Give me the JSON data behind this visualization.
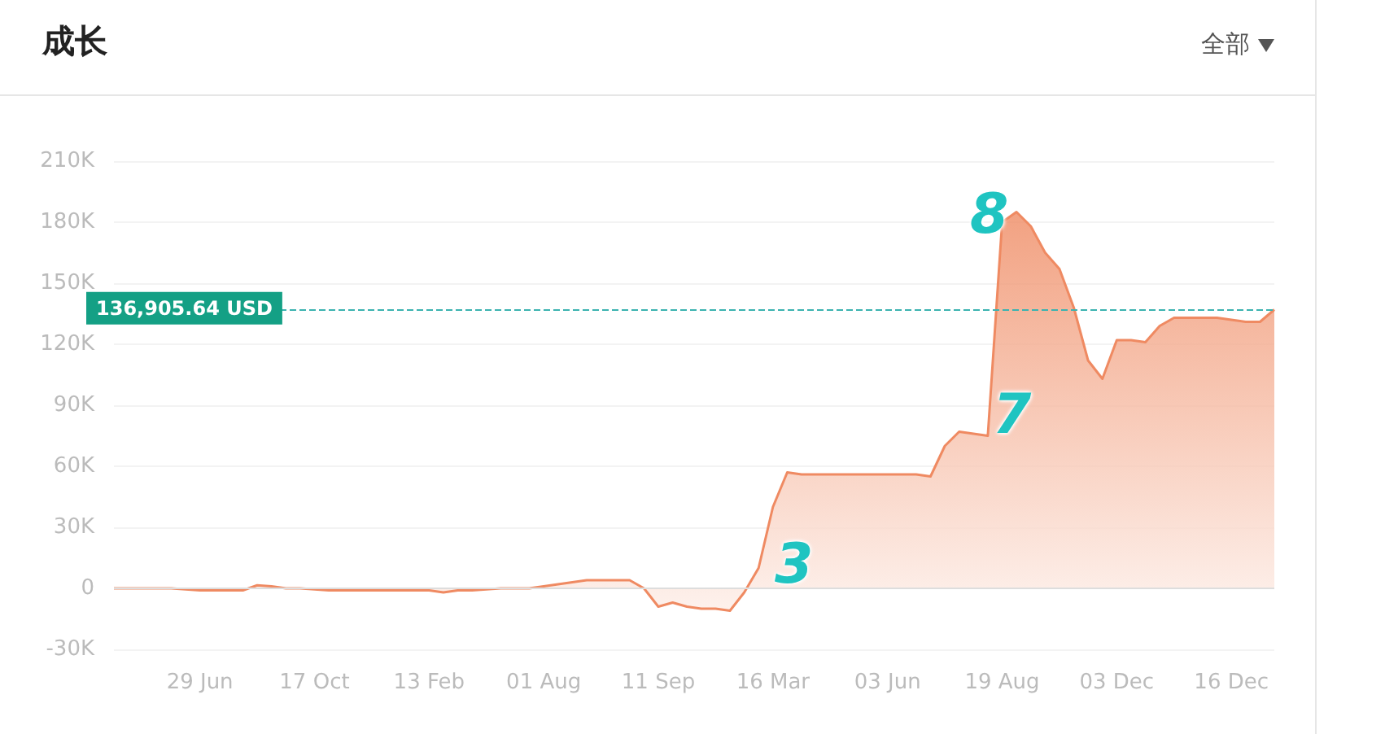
{
  "chart_data": {
    "type": "area",
    "title": "成长",
    "categories": [
      null,
      null,
      null,
      null,
      null,
      null,
      "29 Jun",
      null,
      null,
      null,
      null,
      null,
      null,
      null,
      "17 Oct",
      null,
      null,
      null,
      null,
      null,
      null,
      null,
      "13 Feb",
      null,
      null,
      null,
      null,
      null,
      null,
      null,
      "01 Aug",
      null,
      null,
      null,
      null,
      null,
      null,
      null,
      "11 Sep",
      null,
      null,
      null,
      null,
      null,
      null,
      null,
      "16 Mar",
      null,
      null,
      null,
      null,
      null,
      null,
      null,
      "03 Jun",
      null,
      null,
      null,
      null,
      null,
      null,
      null,
      "19 Aug",
      null,
      null,
      null,
      null,
      null,
      null,
      null,
      "03 Dec",
      null,
      null,
      null,
      null,
      null,
      null,
      null,
      "16 Dec",
      null,
      null,
      null
    ],
    "series": [
      {
        "color": "#ef8a62",
        "values": [
          0,
          0,
          0,
          0,
          0,
          -500,
          -1000,
          -1000,
          -1000,
          -1000,
          1500,
          1000,
          0,
          0,
          -500,
          -1000,
          -1000,
          -1000,
          -1000,
          -1000,
          -1000,
          -1000,
          -1000,
          -2000,
          -1000,
          -1000,
          -500,
          0,
          0,
          0,
          1000,
          2000,
          3000,
          4000,
          4000,
          4000,
          4000,
          0,
          -9000,
          -7000,
          -9000,
          -10000,
          -10000,
          -11000,
          -2000,
          10000,
          40000,
          57000,
          56000,
          56000,
          56000,
          56000,
          56000,
          56000,
          56000,
          56000,
          56000,
          55000,
          70000,
          77000,
          76000,
          75000,
          180000,
          185000,
          178000,
          165000,
          157000,
          138000,
          112000,
          103000,
          122000,
          122000,
          121000,
          129000,
          133000,
          133000,
          133000,
          133000,
          132000,
          131000,
          131000,
          137000
        ]
      }
    ],
    "ylim": [
      -30000,
      210000
    ],
    "yticks": [
      {
        "value": -30000,
        "label": "-30K"
      },
      {
        "value": 0,
        "label": "0"
      },
      {
        "value": 30000,
        "label": "30K"
      },
      {
        "value": 60000,
        "label": "60K"
      },
      {
        "value": 90000,
        "label": "90K"
      },
      {
        "value": 120000,
        "label": "120K"
      },
      {
        "value": 150000,
        "label": "150K"
      },
      {
        "value": 180000,
        "label": "180K"
      },
      {
        "value": 210000,
        "label": "210K"
      }
    ],
    "ref_lines": [
      {
        "axis": "y",
        "value": 136905.64,
        "label": "136,905.64 USD",
        "color": "#3bb3b0",
        "line_style": "dashed"
      }
    ],
    "annotations": [
      "全部",
      "3",
      "7",
      "8"
    ],
    "grid": "y",
    "marker": "none"
  }
}
